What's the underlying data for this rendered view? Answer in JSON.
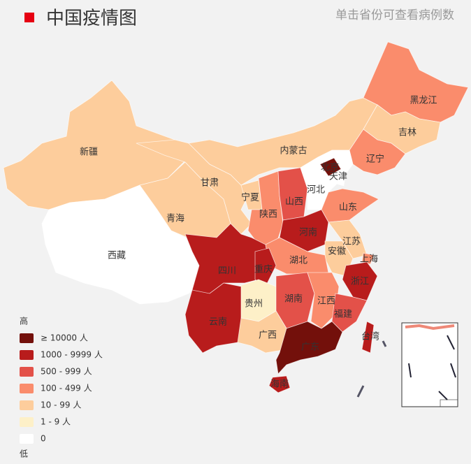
{
  "header": {
    "title": "中国疫情图",
    "hint": "单击省份可查看病例数"
  },
  "legend": {
    "high": "高",
    "low": "低",
    "items": [
      {
        "label": "≥ 10000 人",
        "color": "#73100b"
      },
      {
        "label": "1000 - 9999 人",
        "color": "#b81c1c"
      },
      {
        "label": "500 - 999 人",
        "color": "#e35149"
      },
      {
        "label": "100 - 499 人",
        "color": "#fa8c6c"
      },
      {
        "label": "10 - 99 人",
        "color": "#fdcd9c"
      },
      {
        "label": "1 - 9 人",
        "color": "#fdf0c8"
      },
      {
        "label": "0",
        "color": "#ffffff"
      }
    ]
  },
  "provinces": [
    {
      "name": "新疆",
      "color": "#fdcd9c"
    },
    {
      "name": "西藏",
      "color": "#ffffff"
    },
    {
      "name": "青海",
      "color": "#fdcd9c"
    },
    {
      "name": "甘肃",
      "color": "#fdcd9c"
    },
    {
      "name": "内蒙古",
      "color": "#fdcd9c"
    },
    {
      "name": "黑龙江",
      "color": "#fa8c6c"
    },
    {
      "name": "吉林",
      "color": "#fdcd9c"
    },
    {
      "name": "辽宁",
      "color": "#fa8c6c"
    },
    {
      "name": "宁夏",
      "color": "#fdcd9c"
    },
    {
      "name": "陕西",
      "color": "#fa8c6c"
    },
    {
      "name": "山西",
      "color": "#e35149"
    },
    {
      "name": "河北",
      "color": "#ffffff"
    },
    {
      "name": "北京",
      "color": "#73100b"
    },
    {
      "name": "天津",
      "color": "#ffffff"
    },
    {
      "name": "山东",
      "color": "#fa8c6c"
    },
    {
      "name": "河南",
      "color": "#b81c1c"
    },
    {
      "name": "江苏",
      "color": "#fdcd9c"
    },
    {
      "name": "安徽",
      "color": "#fdcd9c"
    },
    {
      "name": "上海",
      "color": "#fa8c6c"
    },
    {
      "name": "湖北",
      "color": "#fa8c6c"
    },
    {
      "name": "四川",
      "color": "#b81c1c"
    },
    {
      "name": "重庆",
      "color": "#b81c1c"
    },
    {
      "name": "贵州",
      "color": "#fdf0c8"
    },
    {
      "name": "云南",
      "color": "#b81c1c"
    },
    {
      "name": "湖南",
      "color": "#e35149"
    },
    {
      "name": "江西",
      "color": "#fa8c6c"
    },
    {
      "name": "浙江",
      "color": "#b81c1c"
    },
    {
      "name": "福建",
      "color": "#e35149"
    },
    {
      "name": "广西",
      "color": "#fdcd9c"
    },
    {
      "name": "广东",
      "color": "#73100b"
    },
    {
      "name": "海南",
      "color": "#b81c1c"
    },
    {
      "name": "台湾",
      "color": "#b81c1c"
    }
  ]
}
